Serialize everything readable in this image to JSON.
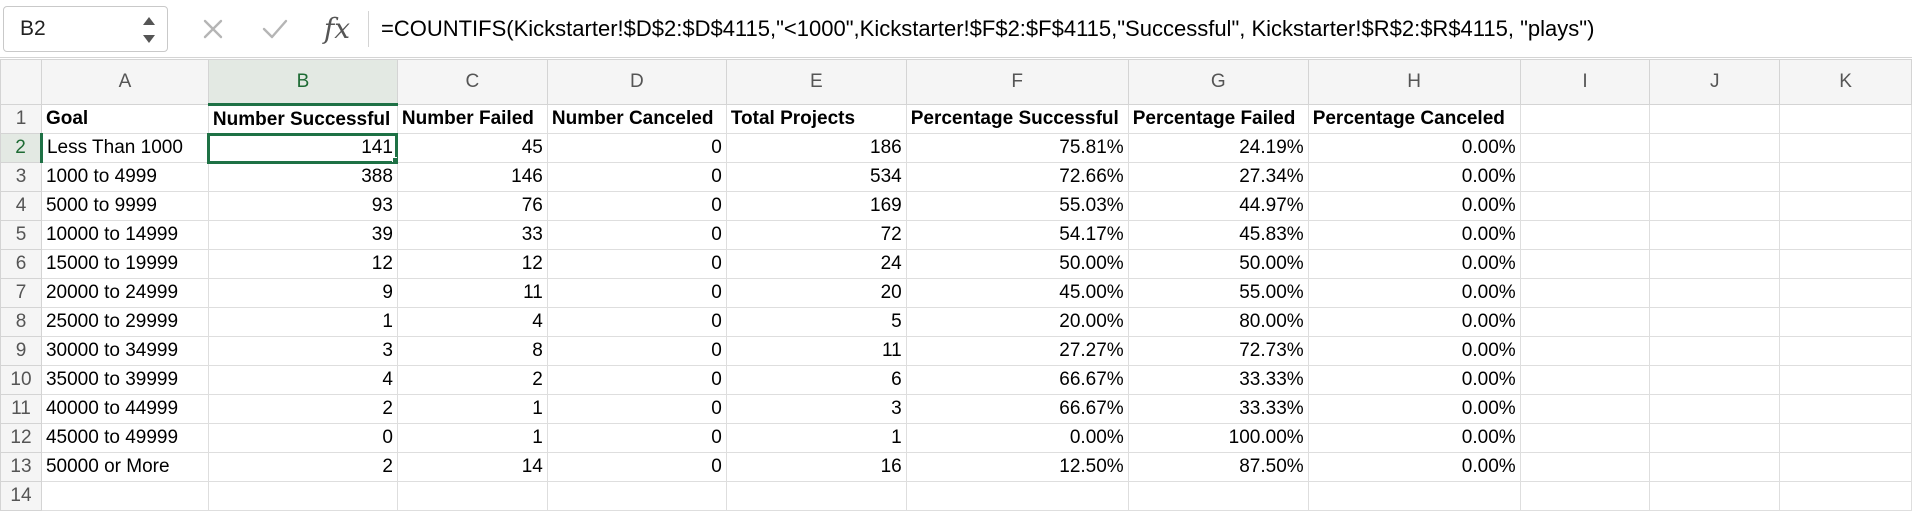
{
  "name_box": {
    "value": "B2"
  },
  "formula_bar": {
    "fx_label": "fx",
    "formula": "=COUNTIFS(Kickstarter!$D$2:$D$4115,\"<1000\",Kickstarter!$F$2:$F$4115,\"Successful\", Kickstarter!$R$2:$R$4115, \"plays\")"
  },
  "columns": [
    "A",
    "B",
    "C",
    "D",
    "E",
    "F",
    "G",
    "H",
    "I",
    "J",
    "K"
  ],
  "row_numbers": [
    "1",
    "2",
    "3",
    "4",
    "5",
    "6",
    "7",
    "8",
    "9",
    "10",
    "11",
    "12",
    "13",
    "14"
  ],
  "selected_cell": "B2",
  "colors": {
    "accent": "#1e7145",
    "header_bg": "#f5f5f5",
    "active_header_bg": "#e3e9e3",
    "gridline": "#dedede"
  },
  "headers": [
    "Goal",
    "Number Successful",
    "Number Failed",
    "Number Canceled",
    "Total Projects",
    "Percentage Successful",
    "Percentage Failed",
    "Percentage Canceled"
  ],
  "rows": [
    [
      "Less Than 1000",
      "141",
      "45",
      "0",
      "186",
      "75.81%",
      "24.19%",
      "0.00%"
    ],
    [
      "1000 to 4999",
      "388",
      "146",
      "0",
      "534",
      "72.66%",
      "27.34%",
      "0.00%"
    ],
    [
      "5000 to 9999",
      "93",
      "76",
      "0",
      "169",
      "55.03%",
      "44.97%",
      "0.00%"
    ],
    [
      "10000 to 14999",
      "39",
      "33",
      "0",
      "72",
      "54.17%",
      "45.83%",
      "0.00%"
    ],
    [
      "15000 to 19999",
      "12",
      "12",
      "0",
      "24",
      "50.00%",
      "50.00%",
      "0.00%"
    ],
    [
      "20000 to 24999",
      "9",
      "11",
      "0",
      "20",
      "45.00%",
      "55.00%",
      "0.00%"
    ],
    [
      "25000 to 29999",
      "1",
      "4",
      "0",
      "5",
      "20.00%",
      "80.00%",
      "0.00%"
    ],
    [
      "30000 to 34999",
      "3",
      "8",
      "0",
      "11",
      "27.27%",
      "72.73%",
      "0.00%"
    ],
    [
      "35000 to 39999",
      "4",
      "2",
      "0",
      "6",
      "66.67%",
      "33.33%",
      "0.00%"
    ],
    [
      "40000 to 44999",
      "2",
      "1",
      "0",
      "3",
      "66.67%",
      "33.33%",
      "0.00%"
    ],
    [
      "45000 to 49999",
      "0",
      "1",
      "0",
      "1",
      "0.00%",
      "100.00%",
      "0.00%"
    ],
    [
      "50000 or More",
      "2",
      "14",
      "0",
      "16",
      "12.50%",
      "87.50%",
      "0.00%"
    ]
  ]
}
